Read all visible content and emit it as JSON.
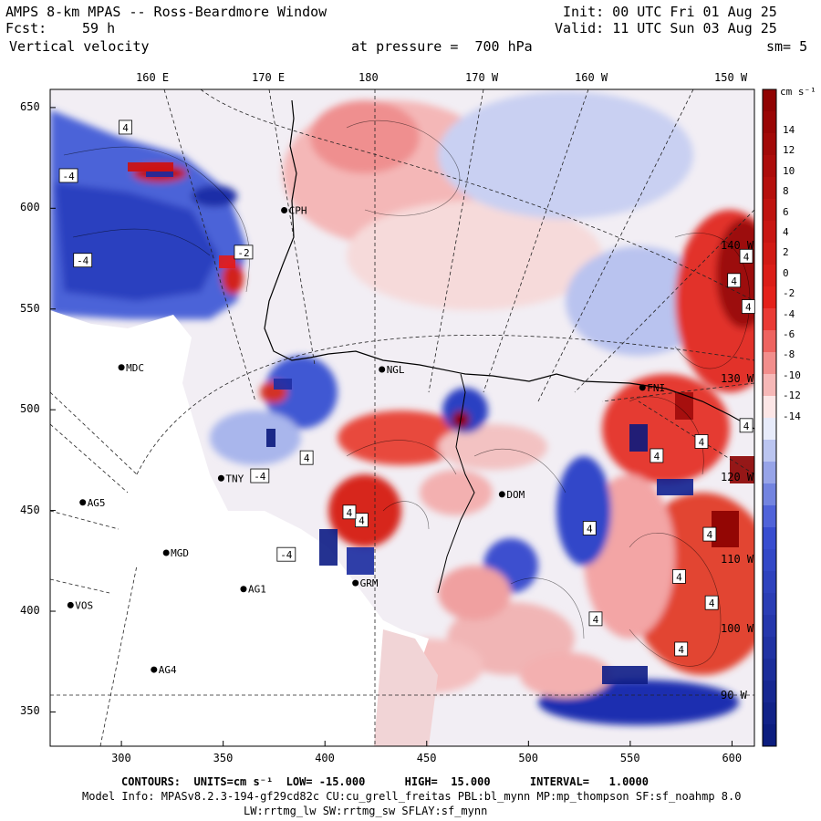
{
  "header": {
    "title": "AMPS 8-km MPAS -- Ross-Beardmore Window",
    "init": "Init: 00 UTC Fri 01 Aug 25",
    "fcst_label": "Fcst:",
    "fcst_value": "59 h",
    "valid": "Valid: 11 UTC Sun 03 Aug 25",
    "field": "Vertical velocity",
    "pressure": "at pressure =  700 hPa",
    "smooth": "sm= 5"
  },
  "map": {
    "top_lon_labels": [
      "160 E",
      "170 E",
      "180",
      "170 W",
      "160 W",
      "150 W"
    ],
    "right_lon_labels": [
      "140 W",
      "130 W",
      "120 W",
      "110 W",
      "100 W",
      "90 W"
    ],
    "y_ticks": [
      650,
      600,
      550,
      500,
      450,
      400,
      350
    ],
    "x_ticks": [
      300,
      350,
      400,
      450,
      500,
      550,
      600
    ],
    "x_range": [
      265,
      611
    ],
    "y_range": [
      333,
      659
    ],
    "stations": [
      {
        "id": "CPH",
        "x": 380,
        "y": 599
      },
      {
        "id": "MDC",
        "x": 300,
        "y": 521
      },
      {
        "id": "NGL",
        "x": 428,
        "y": 520
      },
      {
        "id": "AG5",
        "x": 281,
        "y": 454
      },
      {
        "id": "MGD",
        "x": 322,
        "y": 429
      },
      {
        "id": "AG1",
        "x": 360,
        "y": 411
      },
      {
        "id": "VOS",
        "x": 275,
        "y": 403
      },
      {
        "id": "AG4",
        "x": 316,
        "y": 371
      },
      {
        "id": "GRM",
        "x": 415,
        "y": 414
      },
      {
        "id": "TNY",
        "x": 349,
        "y": 466
      },
      {
        "id": "DOM",
        "x": 487,
        "y": 458
      },
      {
        "id": "FNI",
        "x": 556,
        "y": 511
      }
    ],
    "contour_boxes": [
      {
        "v": "4",
        "x": 302,
        "y": 640
      },
      {
        "v": "-4",
        "x": 274,
        "y": 616
      },
      {
        "v": "-4",
        "x": 281,
        "y": 574
      },
      {
        "v": "-2",
        "x": 360,
        "y": 578
      },
      {
        "v": "4",
        "x": 607,
        "y": 576
      },
      {
        "v": "4",
        "x": 601,
        "y": 564
      },
      {
        "v": "4",
        "x": 608,
        "y": 551
      },
      {
        "v": "4",
        "x": 563,
        "y": 477
      },
      {
        "v": "4",
        "x": 585,
        "y": 484
      },
      {
        "v": "4",
        "x": 391,
        "y": 476
      },
      {
        "v": "-4",
        "x": 368,
        "y": 467
      },
      {
        "v": "4",
        "x": 418,
        "y": 445
      },
      {
        "v": "4",
        "x": 412,
        "y": 449
      },
      {
        "v": "-4",
        "x": 381,
        "y": 428
      },
      {
        "v": "4",
        "x": 530,
        "y": 441
      },
      {
        "v": "4",
        "x": 607,
        "y": 492
      },
      {
        "v": "4",
        "x": 533,
        "y": 396
      },
      {
        "v": "4",
        "x": 575,
        "y": 381
      },
      {
        "v": "4",
        "x": 590,
        "y": 404
      },
      {
        "v": "4",
        "x": 574,
        "y": 417
      },
      {
        "v": "4",
        "x": 589,
        "y": 438
      }
    ],
    "colors": {
      "red_dark": "#8b0000",
      "red": "#e8221b",
      "pink": "#f7c4c4",
      "white": "#ffffff",
      "blue_light": "#c6cff2",
      "blue": "#3a4fd4",
      "blue_dark": "#0a1a7a"
    }
  },
  "colorbar": {
    "units": "cm s⁻¹",
    "labels": [
      "14",
      "12",
      "10",
      "8",
      "6",
      "4",
      "2",
      "0",
      "-2",
      "-4",
      "-6",
      "-8",
      "-10",
      "-12",
      "-14"
    ]
  },
  "footer": {
    "contours": "CONTOURS:  UNITS=cm s⁻¹  LOW= -15.000      HIGH=  15.000      INTERVAL=   1.0000",
    "model_info": "Model Info: MPASv8.2.3-194-gf29cd82c CU:cu_grell_freitas PBL:bl_mynn MP:mp_thompson SF:sf_noahmp 8.0",
    "model_info2": "LW:rrtmg_lw SW:rrtmg_sw SFLAY:sf_mynn"
  }
}
